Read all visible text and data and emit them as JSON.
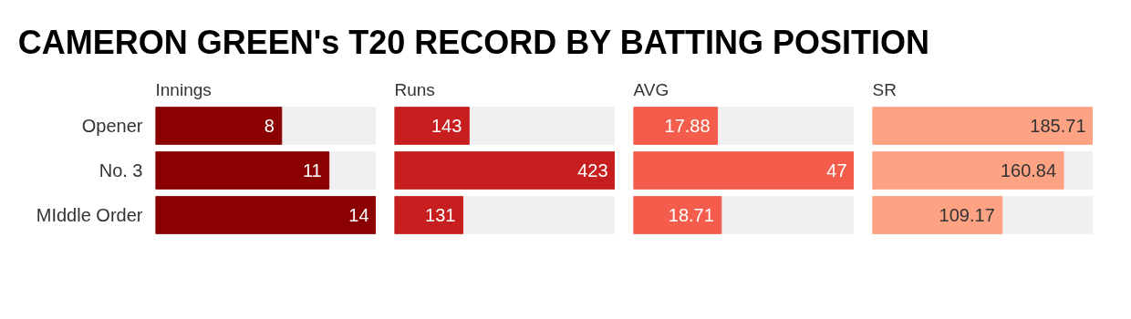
{
  "chart_data": [
    {
      "type": "other",
      "title": "CAMERON GREEN's T20 RECORD BY BATTING POSITION"
    },
    {
      "type": "bar",
      "orientation": "horizontal",
      "title": "Innings",
      "categories": [
        "Opener",
        "No. 3",
        "MIddle Order"
      ],
      "values": [
        8,
        11,
        14
      ],
      "color": "#8b0000",
      "data_labels": true,
      "tick_labels": "y",
      "grid": false
    },
    {
      "type": "bar",
      "orientation": "horizontal",
      "title": "Runs",
      "categories": [
        null,
        null,
        null
      ],
      "values": [
        143,
        423,
        131
      ],
      "color": "#c71f1f",
      "data_labels": true,
      "tick_labels": false,
      "grid": false
    },
    {
      "type": "bar",
      "orientation": "horizontal",
      "title": "AVG",
      "categories": [
        null,
        null,
        null
      ],
      "values": [
        17.88,
        47,
        18.71
      ],
      "color": "#f45c4b",
      "data_labels": true,
      "tick_labels": false,
      "grid": false
    },
    {
      "type": "bar",
      "orientation": "horizontal",
      "title": "SR",
      "categories": [
        null,
        null,
        null
      ],
      "values": [
        185.71,
        160.84,
        109.17
      ],
      "color": "#fea284",
      "data_labels": true,
      "tick_labels": false,
      "grid": false
    }
  ]
}
